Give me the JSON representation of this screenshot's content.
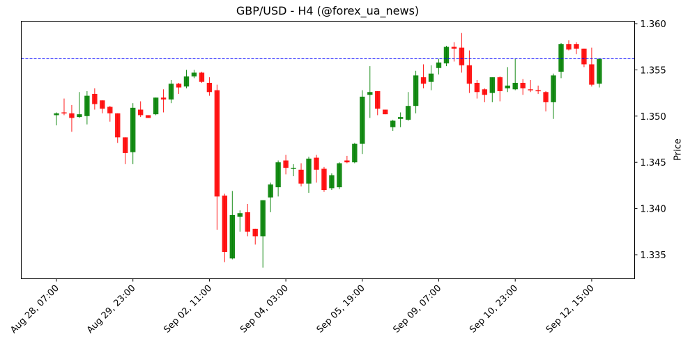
{
  "chart_data": {
    "type": "candlestick",
    "title": "GBP/USD - H4 (@forex_ua_news)",
    "xlabel": "",
    "ylabel": "Price",
    "y_axis_position": "right",
    "ylim": [
      1.3323,
      1.3602
    ],
    "yticks": [
      "1.335",
      "1.340",
      "1.345",
      "1.350",
      "1.355",
      "1.360"
    ],
    "xticks": [
      {
        "index": 0,
        "label": "Aug 28, 07:00"
      },
      {
        "index": 10,
        "label": "Aug 29, 23:00"
      },
      {
        "index": 20,
        "label": "Sep 02, 11:00"
      },
      {
        "index": 30,
        "label": "Sep 04, 03:00"
      },
      {
        "index": 40,
        "label": "Sep 05, 19:00"
      },
      {
        "index": 50,
        "label": "Sep 09, 07:00"
      },
      {
        "index": 60,
        "label": "Sep 10, 23:00"
      },
      {
        "index": 70,
        "label": "Sep 12, 15:00"
      }
    ],
    "grid": false,
    "legend": null,
    "up_color": "#008000",
    "down_color": "#ff0000",
    "hline": {
      "value": 1.3562,
      "color": "#0000ff",
      "style": "dashed"
    },
    "candles": [
      {
        "o": 1.3501,
        "h": 1.3504,
        "l": 1.349,
        "c": 1.3503
      },
      {
        "o": 1.3504,
        "h": 1.3519,
        "l": 1.3501,
        "c": 1.3503
      },
      {
        "o": 1.3503,
        "h": 1.3512,
        "l": 1.3483,
        "c": 1.3498
      },
      {
        "o": 1.3499,
        "h": 1.3526,
        "l": 1.3498,
        "c": 1.3502
      },
      {
        "o": 1.35,
        "h": 1.3527,
        "l": 1.3491,
        "c": 1.3522
      },
      {
        "o": 1.3524,
        "h": 1.353,
        "l": 1.3507,
        "c": 1.3513
      },
      {
        "o": 1.3517,
        "h": 1.3517,
        "l": 1.3503,
        "c": 1.3508
      },
      {
        "o": 1.351,
        "h": 1.3511,
        "l": 1.3494,
        "c": 1.3503
      },
      {
        "o": 1.3503,
        "h": 1.3503,
        "l": 1.3471,
        "c": 1.3477
      },
      {
        "o": 1.3477,
        "h": 1.3477,
        "l": 1.3448,
        "c": 1.346
      },
      {
        "o": 1.3461,
        "h": 1.3514,
        "l": 1.3448,
        "c": 1.3509
      },
      {
        "o": 1.3507,
        "h": 1.3516,
        "l": 1.3499,
        "c": 1.3501
      },
      {
        "o": 1.3501,
        "h": 1.3501,
        "l": 1.3498,
        "c": 1.3498
      },
      {
        "o": 1.3502,
        "h": 1.352,
        "l": 1.3501,
        "c": 1.352
      },
      {
        "o": 1.352,
        "h": 1.3529,
        "l": 1.3504,
        "c": 1.3518
      },
      {
        "o": 1.3518,
        "h": 1.3539,
        "l": 1.3514,
        "c": 1.3535
      },
      {
        "o": 1.3535,
        "h": 1.3536,
        "l": 1.3524,
        "c": 1.3531
      },
      {
        "o": 1.3532,
        "h": 1.355,
        "l": 1.353,
        "c": 1.3543
      },
      {
        "o": 1.3543,
        "h": 1.355,
        "l": 1.3541,
        "c": 1.3547
      },
      {
        "o": 1.3547,
        "h": 1.3548,
        "l": 1.3536,
        "c": 1.3537
      },
      {
        "o": 1.3536,
        "h": 1.3542,
        "l": 1.3522,
        "c": 1.3526
      },
      {
        "o": 1.3528,
        "h": 1.3534,
        "l": 1.3377,
        "c": 1.3413
      },
      {
        "o": 1.3414,
        "h": 1.3416,
        "l": 1.3342,
        "c": 1.3353
      },
      {
        "o": 1.3346,
        "h": 1.3419,
        "l": 1.3345,
        "c": 1.3393
      },
      {
        "o": 1.3391,
        "h": 1.3398,
        "l": 1.3375,
        "c": 1.3395
      },
      {
        "o": 1.3396,
        "h": 1.3405,
        "l": 1.337,
        "c": 1.3375
      },
      {
        "o": 1.3378,
        "h": 1.3378,
        "l": 1.3361,
        "c": 1.337
      },
      {
        "o": 1.337,
        "h": 1.3409,
        "l": 1.3336,
        "c": 1.3409
      },
      {
        "o": 1.3412,
        "h": 1.3428,
        "l": 1.3396,
        "c": 1.3426
      },
      {
        "o": 1.3423,
        "h": 1.3452,
        "l": 1.3413,
        "c": 1.345
      },
      {
        "o": 1.3452,
        "h": 1.3458,
        "l": 1.3437,
        "c": 1.3444
      },
      {
        "o": 1.3444,
        "h": 1.3448,
        "l": 1.3435,
        "c": 1.3444
      },
      {
        "o": 1.3442,
        "h": 1.3449,
        "l": 1.3424,
        "c": 1.3427
      },
      {
        "o": 1.3427,
        "h": 1.3456,
        "l": 1.3417,
        "c": 1.3454
      },
      {
        "o": 1.3455,
        "h": 1.3458,
        "l": 1.3428,
        "c": 1.3442
      },
      {
        "o": 1.3443,
        "h": 1.3445,
        "l": 1.3418,
        "c": 1.342
      },
      {
        "o": 1.3422,
        "h": 1.3438,
        "l": 1.342,
        "c": 1.3436
      },
      {
        "o": 1.3423,
        "h": 1.345,
        "l": 1.3421,
        "c": 1.3449
      },
      {
        "o": 1.3452,
        "h": 1.3457,
        "l": 1.3449,
        "c": 1.345
      },
      {
        "o": 1.345,
        "h": 1.3471,
        "l": 1.3449,
        "c": 1.347
      },
      {
        "o": 1.347,
        "h": 1.3528,
        "l": 1.3459,
        "c": 1.3521
      },
      {
        "o": 1.3523,
        "h": 1.3554,
        "l": 1.3498,
        "c": 1.3526
      },
      {
        "o": 1.3527,
        "h": 1.3527,
        "l": 1.3501,
        "c": 1.3508
      },
      {
        "o": 1.3507,
        "h": 1.3507,
        "l": 1.3502,
        "c": 1.3502
      },
      {
        "o": 1.3488,
        "h": 1.3496,
        "l": 1.3484,
        "c": 1.3495
      },
      {
        "o": 1.3497,
        "h": 1.3504,
        "l": 1.3488,
        "c": 1.3499
      },
      {
        "o": 1.3496,
        "h": 1.3526,
        "l": 1.3495,
        "c": 1.3511
      },
      {
        "o": 1.3511,
        "h": 1.3549,
        "l": 1.3503,
        "c": 1.3544
      },
      {
        "o": 1.3542,
        "h": 1.3556,
        "l": 1.353,
        "c": 1.3535
      },
      {
        "o": 1.3537,
        "h": 1.3555,
        "l": 1.3528,
        "c": 1.3546
      },
      {
        "o": 1.3552,
        "h": 1.3562,
        "l": 1.3545,
        "c": 1.3558
      },
      {
        "o": 1.3557,
        "h": 1.3576,
        "l": 1.3554,
        "c": 1.3575
      },
      {
        "o": 1.3575,
        "h": 1.358,
        "l": 1.3559,
        "c": 1.3573
      },
      {
        "o": 1.3574,
        "h": 1.359,
        "l": 1.3547,
        "c": 1.3555
      },
      {
        "o": 1.3555,
        "h": 1.3571,
        "l": 1.3525,
        "c": 1.3535
      },
      {
        "o": 1.3536,
        "h": 1.3539,
        "l": 1.3519,
        "c": 1.3526
      },
      {
        "o": 1.3529,
        "h": 1.353,
        "l": 1.3515,
        "c": 1.3523
      },
      {
        "o": 1.3525,
        "h": 1.3542,
        "l": 1.3515,
        "c": 1.3542
      },
      {
        "o": 1.3542,
        "h": 1.3543,
        "l": 1.3516,
        "c": 1.3527
      },
      {
        "o": 1.353,
        "h": 1.3553,
        "l": 1.3526,
        "c": 1.3533
      },
      {
        "o": 1.3529,
        "h": 1.3562,
        "l": 1.3528,
        "c": 1.3536
      },
      {
        "o": 1.3536,
        "h": 1.354,
        "l": 1.3523,
        "c": 1.353
      },
      {
        "o": 1.3529,
        "h": 1.3539,
        "l": 1.3526,
        "c": 1.3528
      },
      {
        "o": 1.3528,
        "h": 1.3533,
        "l": 1.3524,
        "c": 1.3527
      },
      {
        "o": 1.3526,
        "h": 1.3527,
        "l": 1.3505,
        "c": 1.3515
      },
      {
        "o": 1.3515,
        "h": 1.3546,
        "l": 1.3497,
        "c": 1.3544
      },
      {
        "o": 1.3548,
        "h": 1.3579,
        "l": 1.3541,
        "c": 1.3578
      },
      {
        "o": 1.3578,
        "h": 1.3582,
        "l": 1.3571,
        "c": 1.3572
      },
      {
        "o": 1.3578,
        "h": 1.358,
        "l": 1.3567,
        "c": 1.3573
      },
      {
        "o": 1.3573,
        "h": 1.3573,
        "l": 1.3553,
        "c": 1.3556
      },
      {
        "o": 1.3556,
        "h": 1.3574,
        "l": 1.3532,
        "c": 1.3534
      },
      {
        "o": 1.3535,
        "h": 1.3562,
        "l": 1.3531,
        "c": 1.3562
      }
    ]
  }
}
